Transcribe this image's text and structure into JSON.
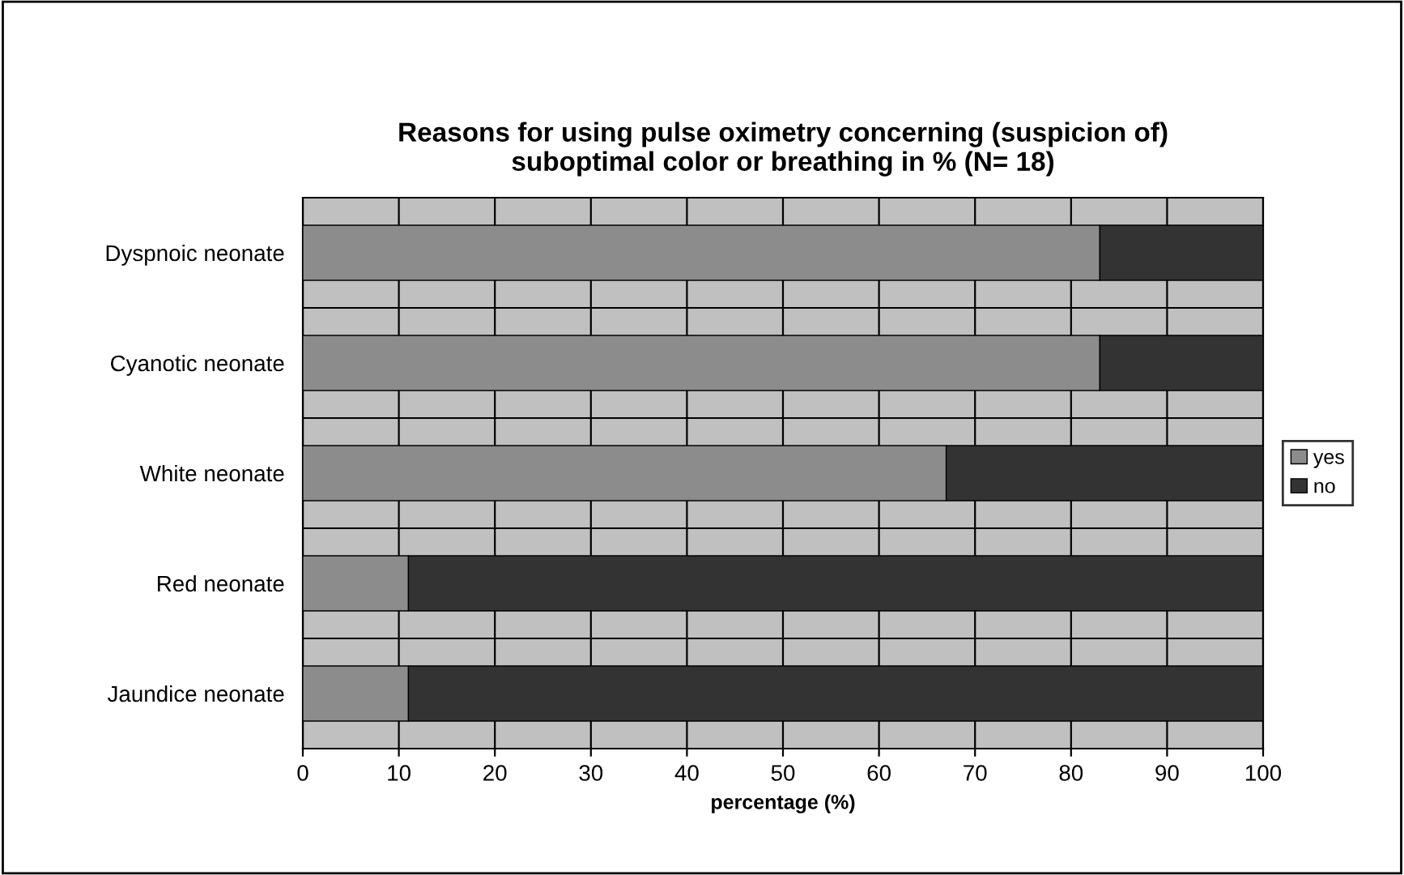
{
  "chart_data": {
    "type": "bar",
    "orientation": "horizontal",
    "stacked": true,
    "title": "Reasons for using pulse oximetry concerning (suspicion of)\nsuboptimal color or breathing in % (N= 18)",
    "xlabel": "percentage (%)",
    "categories": [
      "Dyspnoic neonate",
      "Cyanotic neonate",
      "White neonate",
      "Red neonate",
      "Jaundice neonate"
    ],
    "series": [
      {
        "name": "yes",
        "color": "#8c8c8c",
        "values": [
          83,
          83,
          67,
          11,
          11
        ]
      },
      {
        "name": "no",
        "color": "#333333",
        "values": [
          17,
          17,
          33,
          89,
          89
        ]
      }
    ],
    "xlim": [
      0,
      100
    ],
    "xticks": [
      0,
      10,
      20,
      30,
      40,
      50,
      60,
      70,
      80,
      90,
      100
    ],
    "grid": true,
    "legend": "right"
  }
}
